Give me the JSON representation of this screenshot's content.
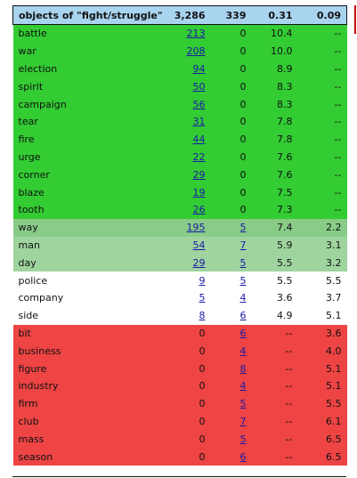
{
  "header": {
    "title": "objects of \"fight/struggle\"",
    "c1": "3,286",
    "c2": "339",
    "c3": "0.31",
    "c4": "0.09"
  },
  "colors": {
    "header": "#a9d4f0",
    "strong_green": "#33cc33",
    "mid_green": "#88cc88",
    "light_green": "#9fd49f",
    "white": "#ffffff",
    "red": "#ee4444",
    "link": "#1a1aa6"
  },
  "rows": [
    {
      "word": "battle",
      "c1": "213",
      "c2": "0",
      "c3": "10.4",
      "c4": "--",
      "c1_link": true,
      "c2_link": false,
      "band": "green"
    },
    {
      "word": "war",
      "c1": "208",
      "c2": "0",
      "c3": "10.0",
      "c4": "--",
      "c1_link": true,
      "c2_link": false,
      "band": "green"
    },
    {
      "word": "election",
      "c1": "94",
      "c2": "0",
      "c3": "8.9",
      "c4": "--",
      "c1_link": true,
      "c2_link": false,
      "band": "green"
    },
    {
      "word": "spirit",
      "c1": "50",
      "c2": "0",
      "c3": "8.3",
      "c4": "--",
      "c1_link": true,
      "c2_link": false,
      "band": "green"
    },
    {
      "word": "campaign",
      "c1": "56",
      "c2": "0",
      "c3": "8.3",
      "c4": "--",
      "c1_link": true,
      "c2_link": false,
      "band": "green"
    },
    {
      "word": "tear",
      "c1": "31",
      "c2": "0",
      "c3": "7.8",
      "c4": "--",
      "c1_link": true,
      "c2_link": false,
      "band": "green"
    },
    {
      "word": "fire",
      "c1": "44",
      "c2": "0",
      "c3": "7.8",
      "c4": "--",
      "c1_link": true,
      "c2_link": false,
      "band": "green"
    },
    {
      "word": "urge",
      "c1": "22",
      "c2": "0",
      "c3": "7.6",
      "c4": "--",
      "c1_link": true,
      "c2_link": false,
      "band": "green"
    },
    {
      "word": "corner",
      "c1": "29",
      "c2": "0",
      "c3": "7.6",
      "c4": "--",
      "c1_link": true,
      "c2_link": false,
      "band": "green"
    },
    {
      "word": "blaze",
      "c1": "19",
      "c2": "0",
      "c3": "7.5",
      "c4": "--",
      "c1_link": true,
      "c2_link": false,
      "band": "green"
    },
    {
      "word": "tooth",
      "c1": "26",
      "c2": "0",
      "c3": "7.3",
      "c4": "--",
      "c1_link": true,
      "c2_link": false,
      "band": "green"
    },
    {
      "word": "way",
      "c1": "195",
      "c2": "5",
      "c3": "7.4",
      "c4": "2.2",
      "c1_link": true,
      "c2_link": true,
      "band": "green2"
    },
    {
      "word": "man",
      "c1": "54",
      "c2": "7",
      "c3": "5.9",
      "c4": "3.1",
      "c1_link": true,
      "c2_link": true,
      "band": "green3"
    },
    {
      "word": "day",
      "c1": "29",
      "c2": "5",
      "c3": "5.5",
      "c4": "3.2",
      "c1_link": true,
      "c2_link": true,
      "band": "green3"
    },
    {
      "word": "police",
      "c1": "9",
      "c2": "5",
      "c3": "5.5",
      "c4": "5.5",
      "c1_link": true,
      "c2_link": true,
      "band": "white"
    },
    {
      "word": "company",
      "c1": "5",
      "c2": "4",
      "c3": "3.6",
      "c4": "3.7",
      "c1_link": true,
      "c2_link": true,
      "band": "white"
    },
    {
      "word": "side",
      "c1": "8",
      "c2": "6",
      "c3": "4.9",
      "c4": "5.1",
      "c1_link": true,
      "c2_link": true,
      "band": "white"
    },
    {
      "word": "bit",
      "c1": "0",
      "c2": "6",
      "c3": "--",
      "c4": "3.6",
      "c1_link": false,
      "c2_link": true,
      "band": "red"
    },
    {
      "word": "business",
      "c1": "0",
      "c2": "4",
      "c3": "--",
      "c4": "4.0",
      "c1_link": false,
      "c2_link": true,
      "band": "red"
    },
    {
      "word": "figure",
      "c1": "0",
      "c2": "8",
      "c3": "--",
      "c4": "5.1",
      "c1_link": false,
      "c2_link": true,
      "band": "red"
    },
    {
      "word": "industry",
      "c1": "0",
      "c2": "4",
      "c3": "--",
      "c4": "5.1",
      "c1_link": false,
      "c2_link": true,
      "band": "red"
    },
    {
      "word": "firm",
      "c1": "0",
      "c2": "5",
      "c3": "--",
      "c4": "5.5",
      "c1_link": false,
      "c2_link": true,
      "band": "red"
    },
    {
      "word": "club",
      "c1": "0",
      "c2": "7",
      "c3": "--",
      "c4": "6.1",
      "c1_link": false,
      "c2_link": true,
      "band": "red"
    },
    {
      "word": "mass",
      "c1": "0",
      "c2": "5",
      "c3": "--",
      "c4": "6.5",
      "c1_link": false,
      "c2_link": true,
      "band": "red"
    },
    {
      "word": "season",
      "c1": "0",
      "c2": "6",
      "c3": "--",
      "c4": "6.5",
      "c1_link": false,
      "c2_link": true,
      "band": "red"
    }
  ]
}
